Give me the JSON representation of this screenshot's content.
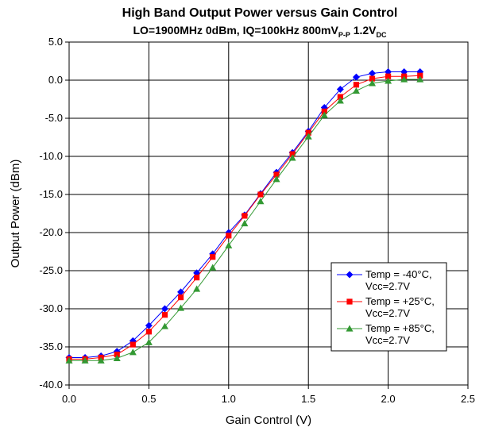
{
  "chart_data": {
    "type": "line",
    "title": "High Band Output Power versus Gain Control",
    "subtitle_parts": [
      "LO=1900MHz 0dBm, IQ=100kHz 800mV",
      "P-P",
      " 1.2V",
      "DC"
    ],
    "xlabel": "Gain Control (V)",
    "ylabel": "Output Power (dBm)",
    "xlim": [
      0,
      2.5
    ],
    "ylim": [
      -40,
      5
    ],
    "x_ticks": [
      "0.0",
      "0.5",
      "1.0",
      "1.5",
      "2.0",
      "2.5"
    ],
    "y_ticks": [
      "5.0",
      "0.0",
      "-5.0",
      "-10.0",
      "-15.0",
      "-20.0",
      "-25.0",
      "-30.0",
      "-35.0",
      "-40.0"
    ],
    "grid": true,
    "legend_position": "lower-right",
    "x": [
      0.0,
      0.1,
      0.2,
      0.3,
      0.4,
      0.5,
      0.6,
      0.7,
      0.8,
      0.9,
      1.0,
      1.1,
      1.2,
      1.3,
      1.4,
      1.5,
      1.6,
      1.7,
      1.8,
      1.9,
      2.0,
      2.1,
      2.2
    ],
    "series": [
      {
        "name_line1": "Temp = -40°C,",
        "name_line2": "Vcc=2.7V",
        "color": "#0000ff",
        "marker": "diamond",
        "values": [
          -36.4,
          -36.4,
          -36.2,
          -35.6,
          -34.2,
          -32.2,
          -30.0,
          -27.8,
          -25.3,
          -22.8,
          -20.0,
          -17.7,
          -14.9,
          -12.1,
          -9.5,
          -6.7,
          -3.6,
          -1.2,
          0.4,
          0.9,
          1.1,
          1.1,
          1.1
        ]
      },
      {
        "name_line1": "Temp = +25°C,",
        "name_line2": "Vcc=2.7V",
        "color": "#ff0000",
        "marker": "square",
        "values": [
          -36.6,
          -36.6,
          -36.4,
          -36.0,
          -34.7,
          -33.0,
          -30.8,
          -28.5,
          -25.9,
          -23.2,
          -20.4,
          -17.8,
          -15.0,
          -12.4,
          -9.7,
          -6.9,
          -4.1,
          -2.2,
          -0.6,
          0.2,
          0.5,
          0.5,
          0.6
        ]
      },
      {
        "name_line1": "Temp = +85°C,",
        "name_line2": "Vcc=2.7V",
        "color": "#339933",
        "marker": "triangle",
        "values": [
          -36.8,
          -36.8,
          -36.8,
          -36.5,
          -35.7,
          -34.4,
          -32.3,
          -29.9,
          -27.4,
          -24.6,
          -21.7,
          -18.8,
          -15.9,
          -13.0,
          -10.2,
          -7.4,
          -4.6,
          -2.7,
          -1.4,
          -0.4,
          -0.1,
          0.1,
          0.1
        ]
      }
    ]
  }
}
